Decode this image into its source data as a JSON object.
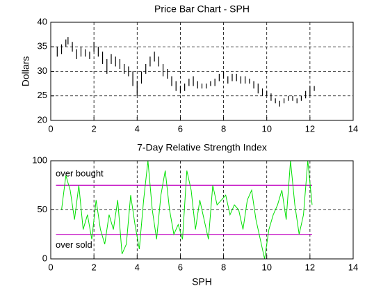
{
  "chart_data": [
    {
      "type": "price_bar",
      "title": "Price Bar Chart - SPH",
      "ylabel": "Dollars",
      "x": [
        0.3,
        0.5,
        0.7,
        0.8,
        1.0,
        1.2,
        1.4,
        1.6,
        1.8,
        2.0,
        2.2,
        2.4,
        2.6,
        2.8,
        3.0,
        3.2,
        3.4,
        3.6,
        3.8,
        4.0,
        4.2,
        4.4,
        4.6,
        4.8,
        5.0,
        5.2,
        5.4,
        5.6,
        5.8,
        6.0,
        6.2,
        6.4,
        6.6,
        6.8,
        7.0,
        7.2,
        7.4,
        7.6,
        7.8,
        8.0,
        8.2,
        8.4,
        8.6,
        8.8,
        9.0,
        9.2,
        9.4,
        9.6,
        9.8,
        10.0,
        10.2,
        10.4,
        10.6,
        10.8,
        11.0,
        11.2,
        11.4,
        11.6,
        11.8,
        12.0,
        12.2
      ],
      "high": [
        35,
        35.5,
        36.5,
        37,
        36,
        34.5,
        35,
        34.5,
        34,
        36,
        35,
        34,
        32.5,
        33.5,
        33,
        32.5,
        31.5,
        31,
        30,
        28,
        30,
        31.5,
        33,
        34,
        33,
        31.5,
        30.5,
        29,
        28,
        27,
        27.5,
        28.5,
        29,
        28,
        27.5,
        27.5,
        28,
        28.5,
        29.5,
        30,
        29,
        29.5,
        29.5,
        29,
        29,
        28.5,
        28,
        27.5,
        26.5,
        26,
        25.5,
        24.5,
        24,
        24.5,
        25,
        25,
        24.5,
        25,
        26,
        27,
        27
      ],
      "low": [
        33,
        33.5,
        35,
        35.5,
        34,
        32.5,
        33,
        33,
        32.5,
        34,
        33,
        31.5,
        29.5,
        31.5,
        31,
        30.5,
        29.5,
        29,
        27,
        25,
        27.5,
        29.5,
        31,
        32,
        31,
        29,
        28.5,
        27,
        26,
        25.5,
        26,
        27,
        27,
        26.5,
        26.5,
        26.5,
        27,
        27,
        28,
        28.5,
        27.5,
        28,
        28,
        27.5,
        27.5,
        27.5,
        26.5,
        25.5,
        25,
        25,
        24,
        23.5,
        22.8,
        23.5,
        24,
        24,
        23.5,
        24,
        24.5,
        25,
        26
      ],
      "color": "#000000",
      "xlim": [
        0,
        14
      ],
      "xticks": [
        0,
        2,
        4,
        6,
        8,
        10,
        12,
        14
      ],
      "ylim": [
        20,
        40
      ],
      "yticks": [
        20,
        25,
        30,
        35,
        40
      ],
      "grid": true
    },
    {
      "type": "line",
      "title": "7-Day Relative Strength Index",
      "xlabel": "SPH",
      "x": [
        0.5,
        0.7,
        0.9,
        1.1,
        1.3,
        1.5,
        1.7,
        1.9,
        2.1,
        2.3,
        2.5,
        2.7,
        2.9,
        3.1,
        3.3,
        3.5,
        3.7,
        3.9,
        4.1,
        4.3,
        4.5,
        4.7,
        4.9,
        5.1,
        5.3,
        5.5,
        5.7,
        5.9,
        6.1,
        6.3,
        6.5,
        6.7,
        6.9,
        7.1,
        7.3,
        7.5,
        7.7,
        7.9,
        8.1,
        8.3,
        8.5,
        8.7,
        8.9,
        9.1,
        9.3,
        9.5,
        9.7,
        9.9,
        10.1,
        10.3,
        10.5,
        10.7,
        10.9,
        11.1,
        11.3,
        11.5,
        11.7,
        11.9,
        12.1
      ],
      "values": [
        50,
        85,
        70,
        40,
        75,
        30,
        45,
        20,
        60,
        30,
        15,
        45,
        30,
        60,
        5,
        15,
        65,
        35,
        10,
        60,
        100,
        50,
        20,
        65,
        90,
        50,
        25,
        35,
        20,
        90,
        70,
        30,
        60,
        40,
        20,
        75,
        55,
        60,
        65,
        45,
        55,
        50,
        30,
        60,
        70,
        40,
        20,
        0,
        30,
        45,
        55,
        70,
        40,
        100,
        55,
        25,
        45,
        100,
        55
      ],
      "color": "#00e000",
      "xlim": [
        0,
        14
      ],
      "xticks": [
        0,
        2,
        4,
        6,
        8,
        10,
        12,
        14
      ],
      "ylim": [
        0,
        100
      ],
      "yticks": [
        0,
        50,
        100
      ],
      "grid": true,
      "levels": [
        {
          "text": "over bought",
          "value": 75
        },
        {
          "text": "over sold",
          "value": 25
        }
      ],
      "level_color": "#c000c0"
    }
  ]
}
